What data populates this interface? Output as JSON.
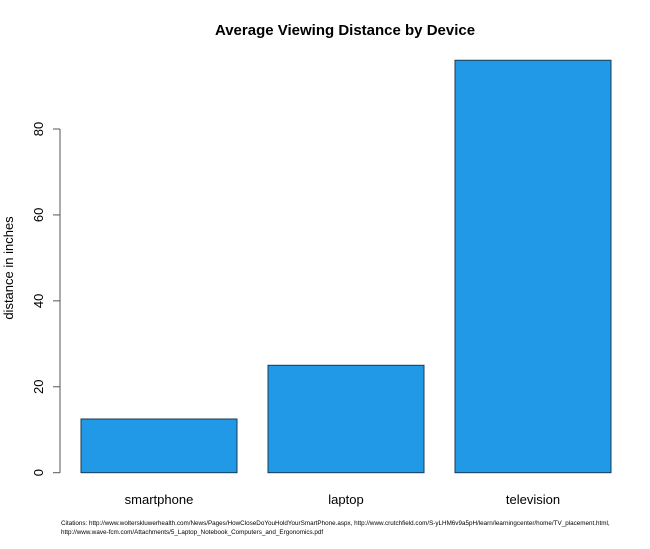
{
  "chart_data": {
    "type": "bar",
    "title": "Average Viewing Distance by Device",
    "xlabel": "",
    "ylabel": "distance in inches",
    "categories": [
      "smartphone",
      "laptop",
      "television"
    ],
    "values": [
      12.5,
      25,
      96
    ],
    "yticks": [
      0,
      20,
      40,
      60,
      80
    ],
    "ylim": [
      0,
      96
    ],
    "grid": false,
    "bar_color": "#2299e6",
    "bar_border_color": "#1a3a50"
  },
  "citations": {
    "line1": "Citations: http://www.wolterskluwerhealth.com/News/Pages/HowCloseDoYouHoldYourSmartPhone.aspx, http://www.crutchfield.com/S-yLHM6v9a5pH/learn/learningcenter/home/TV_placement.html,",
    "line2": "http://www.wave-fcm.com/Attachments/5_Laptop_Notebook_Computers_and_Ergonomics.pdf"
  }
}
